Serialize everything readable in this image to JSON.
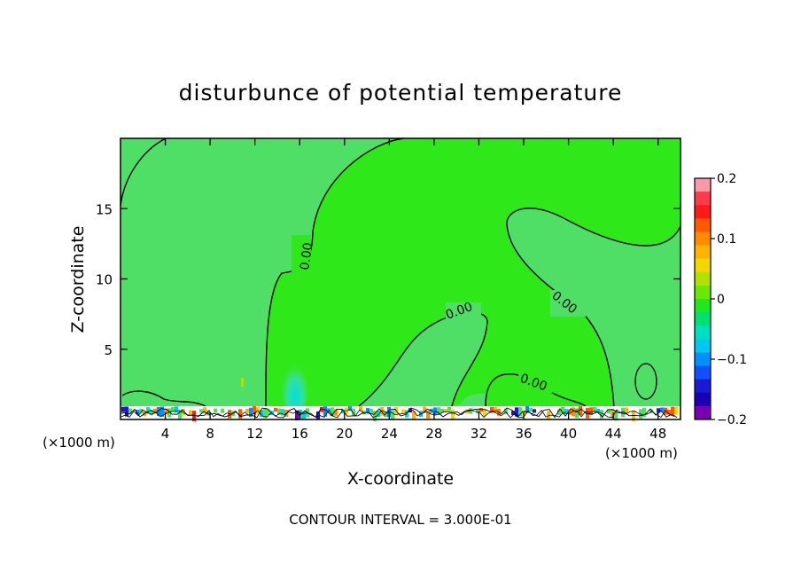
{
  "chart_data": {
    "type": "contour",
    "title": "disturbunce of potential temperature",
    "xlabel": "X-coordinate",
    "ylabel": "Z-coordinate",
    "x_unit": "(×1000 m)",
    "x_unit_right": "(×1000 m)",
    "xlim": [
      0,
      50
    ],
    "ylim": [
      0,
      20
    ],
    "x_ticks": [
      4,
      8,
      12,
      16,
      20,
      24,
      28,
      32,
      36,
      40,
      44,
      48
    ],
    "x_tick_labels": [
      "4",
      "8",
      "12",
      "16",
      "20",
      "24",
      "28",
      "32",
      "36",
      "40",
      "44",
      "48"
    ],
    "y_ticks": [
      5,
      10,
      15
    ],
    "y_tick_labels": [
      "5",
      "10",
      "15"
    ],
    "colorbar": {
      "range": [
        -0.2,
        0.2
      ],
      "tick_values": [
        0.2,
        0.1,
        0,
        -0.1,
        -0.2
      ],
      "tick_labels": [
        "0.2",
        "0.1",
        "0",
        "−0.1",
        "−0.2"
      ],
      "colors": [
        "#f89aa6",
        "#ff3a4a",
        "#ff1a1a",
        "#ff5a00",
        "#ff8c00",
        "#ffb400",
        "#f0d800",
        "#b4e000",
        "#6ae800",
        "#1ee81e",
        "#00e070",
        "#00e0c0",
        "#00c8f0",
        "#0090ff",
        "#1050ff",
        "#1a1ad0",
        "#1a00b4",
        "#7a00b4"
      ]
    },
    "contour_labels": [
      "0.00",
      "0.00",
      "0.00",
      "0.00"
    ],
    "footer": "CONTOUR INTERVAL = 3.000E-01"
  }
}
